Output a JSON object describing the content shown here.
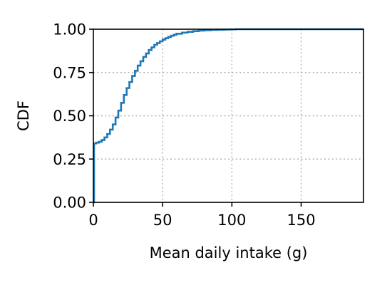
{
  "chart_data": {
    "type": "line",
    "step": true,
    "xlabel": "Mean daily intake (g)",
    "ylabel": "CDF",
    "xlim": [
      0,
      195
    ],
    "ylim": [
      0,
      1
    ],
    "xticks": [
      0,
      50,
      100,
      150
    ],
    "yticks": [
      0.0,
      0.25,
      0.5,
      0.75,
      1.0
    ],
    "xtick_labels": [
      "0",
      "50",
      "100",
      "150"
    ],
    "ytick_labels": [
      "0.00",
      "0.25",
      "0.50",
      "0.75",
      "1.00"
    ],
    "grid": true,
    "legend": "none",
    "series": [
      {
        "color": "#1f77b4",
        "x": [
          0,
          0.5,
          2,
          4,
          6,
          8,
          10,
          12,
          14,
          16,
          18,
          20,
          22,
          24,
          26,
          28,
          30,
          32,
          34,
          36,
          38,
          40,
          42,
          44,
          46,
          48,
          50,
          52,
          54,
          56,
          58,
          60,
          64,
          68,
          72,
          76,
          80,
          85,
          90,
          95,
          100,
          103,
          195
        ],
        "y": [
          0,
          0.34,
          0.345,
          0.35,
          0.36,
          0.375,
          0.395,
          0.42,
          0.45,
          0.49,
          0.53,
          0.575,
          0.62,
          0.66,
          0.695,
          0.73,
          0.76,
          0.79,
          0.815,
          0.84,
          0.86,
          0.88,
          0.895,
          0.91,
          0.92,
          0.93,
          0.94,
          0.948,
          0.955,
          0.962,
          0.968,
          0.974,
          0.98,
          0.985,
          0.989,
          0.992,
          0.994,
          0.996,
          0.997,
          0.998,
          0.999,
          1.0,
          1.0
        ]
      }
    ]
  }
}
